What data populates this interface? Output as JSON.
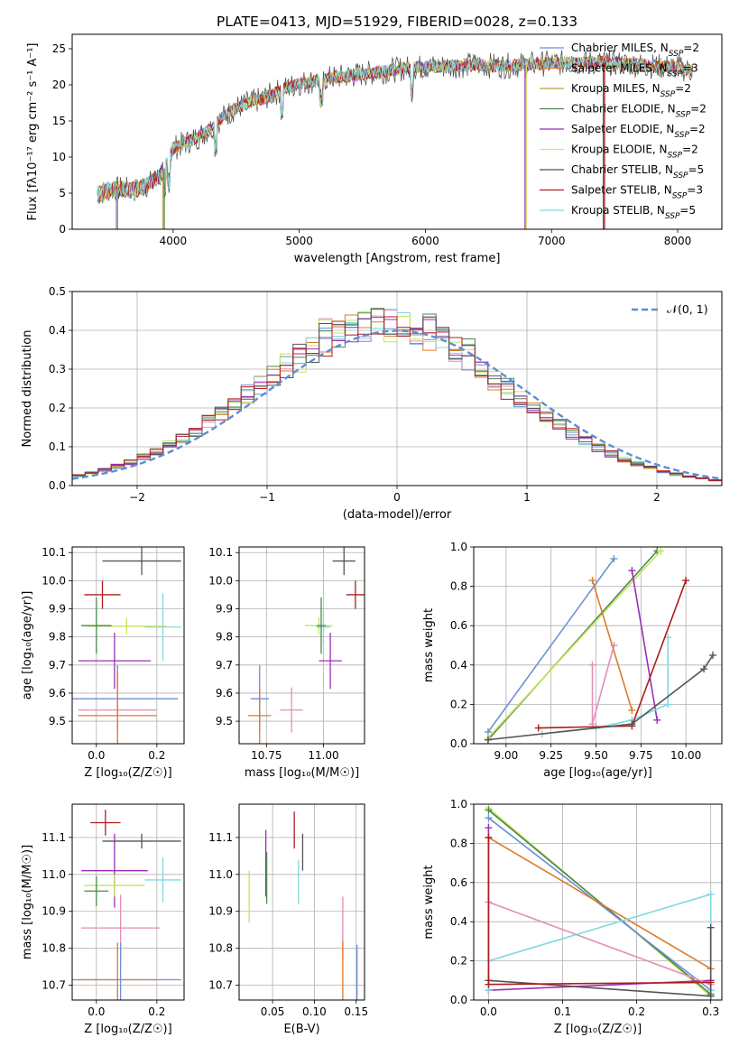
{
  "figure": {
    "title": "PLATE=0413, MJD=51929, FIBERID=0028, z=0.133",
    "palette": {
      "blue": "#6c8fd6",
      "orange": "#e07a28",
      "pink": "#e38fb5",
      "cyan": "#7fd8df",
      "yellowgreen": "#c8e35a",
      "green": "#4a8a4a",
      "purple": "#9b2fb5",
      "gray": "#555555",
      "darkred": "#b01c1c",
      "normal_line": "#5b8ed6"
    }
  },
  "chart_data": [
    {
      "id": "spectrum",
      "type": "line",
      "xlabel": "wavelength [Angstrom, rest frame]",
      "ylabel": "Flux [fλ10⁻¹⁷ erg cm⁻² s⁻¹ A⁻¹]",
      "xlim": [
        3200,
        8350
      ],
      "ylim": [
        0,
        27
      ],
      "xticks": [
        4000,
        5000,
        6000,
        7000,
        8000
      ],
      "yticks": [
        0,
        5,
        10,
        15,
        20,
        25
      ],
      "grid": false,
      "legend_position": "top-right",
      "continuum": {
        "x": [
          3400,
          3500,
          3600,
          3700,
          3800,
          3900,
          3950,
          4000,
          4100,
          4200,
          4300,
          4400,
          4500,
          4600,
          4700,
          4800,
          4900,
          5000,
          5200,
          5400,
          5600,
          5800,
          6000,
          6200,
          6400,
          6600,
          6800,
          7000,
          7200,
          7400,
          7600,
          7800,
          8000,
          8100
        ],
        "y": [
          4.8,
          5.5,
          5.6,
          5.4,
          6.2,
          7.5,
          9.0,
          11.2,
          12.0,
          12.8,
          14.0,
          15.6,
          16.8,
          17.5,
          18.0,
          18.8,
          19.6,
          20.2,
          20.8,
          21.3,
          21.7,
          22.2,
          22.5,
          22.6,
          22.8,
          22.6,
          22.8,
          23.0,
          23.1,
          23.1,
          22.9,
          22.6,
          22.4,
          22.0
        ]
      },
      "drops": [
        {
          "series": "Chabrier MILES",
          "x": 3550
        },
        {
          "series": "Salpeter MILES",
          "x": 3560
        },
        {
          "series": "Kroupa MILES",
          "x": 3920
        },
        {
          "series": "Chabrier ELODIE",
          "x": 3930
        },
        {
          "series": "Salpeter ELODIE",
          "x": 6790
        },
        {
          "series": "Kroupa ELODIE",
          "x": 6800
        },
        {
          "series": "Chabrier STELIB",
          "x": 7410
        },
        {
          "series": "Salpeter STELIB",
          "x": 7420
        }
      ],
      "series": [
        {
          "name": "Chabrier MILES, N_SSP=2",
          "label": "Chabrier MILES, N",
          "sub": "SSP",
          "count": "=2",
          "color": "#6c8fd6"
        },
        {
          "name": "Salpeter MILES, N_SSP=3",
          "label": "Salpeter MILES, N",
          "sub": "SSP",
          "count": "=3",
          "color": "#e07a28"
        },
        {
          "name": "Kroupa MILES, N_SSP=2",
          "label": "Kroupa MILES, N",
          "sub": "SSP",
          "count": "=2",
          "color": "#b8a248"
        },
        {
          "name": "Chabrier ELODIE, N_SSP=2",
          "label": "Chabrier ELODIE, N",
          "sub": "SSP",
          "count": "=2",
          "color": "#4a8a4a"
        },
        {
          "name": "Salpeter ELODIE, N_SSP=2",
          "label": "Salpeter ELODIE, N",
          "sub": "SSP",
          "count": "=2",
          "color": "#9b2fb5"
        },
        {
          "name": "Kroupa ELODIE, N_SSP=2",
          "label": "Kroupa ELODIE, N",
          "sub": "SSP",
          "count": "=2",
          "color": "#d8e36a"
        },
        {
          "name": "Chabrier STELIB, N_SSP=5",
          "label": "Chabrier STELIB, N",
          "sub": "SSP",
          "count": "=5",
          "color": "#555555"
        },
        {
          "name": "Salpeter STELIB, N_SSP=3",
          "label": "Salpeter STELIB, N",
          "sub": "SSP",
          "count": "=3",
          "color": "#b01c1c"
        },
        {
          "name": "Kroupa STELIB, N_SSP=5",
          "label": "Kroupa STELIB, N",
          "sub": "SSP",
          "count": "=5",
          "color": "#7fd8df"
        }
      ]
    },
    {
      "id": "residuals",
      "type": "histogram",
      "xlabel": "(data-model)/error",
      "ylabel": "Normed distribution",
      "xlim": [
        -2.5,
        2.5
      ],
      "ylim": [
        0,
        0.5
      ],
      "xticks": [
        -2,
        -1,
        0,
        1,
        2
      ],
      "yticks": [
        0.0,
        0.1,
        0.2,
        0.3,
        0.4,
        0.5
      ],
      "grid": true,
      "legend_position": "top-right",
      "normal_label": "𝒩(0, 1)",
      "bin_width": 0.1,
      "histogram_colors": [
        "#6c8fd6",
        "#e07a28",
        "#e38fb5",
        "#7fd8df",
        "#c8e35a",
        "#4a8a4a",
        "#9b2fb5",
        "#555555",
        "#b01c1c"
      ]
    },
    {
      "id": "age-vs-Z",
      "type": "errorbar",
      "xlabel": "Z [log₁₀(Z/Z☉)]",
      "ylabel": "age  [log₁₀(age/yr)]",
      "xlim": [
        -0.08,
        0.29
      ],
      "ylim": [
        9.42,
        10.12
      ],
      "xticks": [
        0.0,
        0.2
      ],
      "yticks": [
        9.5,
        9.6,
        9.7,
        9.8,
        9.9,
        10.0,
        10.1
      ],
      "grid": true,
      "points": [
        {
          "x": 0.15,
          "y": 10.07,
          "xerr": 0.13,
          "yerr": 0.05,
          "color": "#555555"
        },
        {
          "x": 0.02,
          "y": 9.95,
          "xerr": 0.06,
          "yerr": 0.05,
          "color": "#b01c1c"
        },
        {
          "x": 0.22,
          "y": 9.835,
          "xerr": 0.06,
          "yerr": 0.12,
          "color": "#7fd8df"
        },
        {
          "x": 0.1,
          "y": 9.838,
          "xerr": 0.13,
          "yerr": 0.03,
          "color": "#c8e35a"
        },
        {
          "x": 0.0,
          "y": 9.84,
          "xerr": 0.05,
          "yerr": 0.1,
          "color": "#4a8a4a"
        },
        {
          "x": 0.06,
          "y": 9.715,
          "xerr": 0.12,
          "yerr": 0.1,
          "color": "#9b2fb5"
        },
        {
          "x": 0.07,
          "y": 9.58,
          "xerr": 0.2,
          "yerr": 0.12,
          "color": "#6c8fd6"
        },
        {
          "x": 0.07,
          "y": 9.54,
          "xerr": 0.13,
          "yerr": 0.08,
          "color": "#e38fb5"
        },
        {
          "x": 0.07,
          "y": 9.52,
          "xerr": 0.13,
          "yerr": 0.15,
          "color": "#e07a28"
        }
      ]
    },
    {
      "id": "age-vs-mass",
      "type": "errorbar",
      "xlabel": "mass [log₁₀(M/M☉)]",
      "ylabel": "",
      "xlim": [
        10.63,
        11.18
      ],
      "ylim": [
        9.42,
        10.12
      ],
      "xticks": [
        10.75,
        11.0
      ],
      "yticks": [
        9.5,
        9.6,
        9.7,
        9.8,
        9.9,
        10.0,
        10.1
      ],
      "grid": true,
      "points": [
        {
          "x": 11.09,
          "y": 10.07,
          "xerr": 0.05,
          "yerr": 0.05,
          "color": "#555555"
        },
        {
          "x": 11.14,
          "y": 9.95,
          "xerr": 0.04,
          "yerr": 0.05,
          "color": "#b01c1c"
        },
        {
          "x": 10.98,
          "y": 9.84,
          "xerr": 0.06,
          "yerr": 0.03,
          "color": "#c8e35a"
        },
        {
          "x": 11.0,
          "y": 9.835,
          "xerr": 0.03,
          "yerr": 0.06,
          "color": "#7fd8df"
        },
        {
          "x": 10.99,
          "y": 9.84,
          "xerr": 0.02,
          "yerr": 0.1,
          "color": "#4a8a4a"
        },
        {
          "x": 11.03,
          "y": 9.715,
          "xerr": 0.05,
          "yerr": 0.1,
          "color": "#9b2fb5"
        },
        {
          "x": 10.72,
          "y": 9.58,
          "xerr": 0.04,
          "yerr": 0.12,
          "color": "#6c8fd6"
        },
        {
          "x": 10.86,
          "y": 9.54,
          "xerr": 0.05,
          "yerr": 0.08,
          "color": "#e38fb5"
        },
        {
          "x": 10.72,
          "y": 9.52,
          "xerr": 0.05,
          "yerr": 0.1,
          "color": "#e07a28"
        }
      ]
    },
    {
      "id": "weight-vs-age",
      "type": "line",
      "xlabel": "age  [log₁₀(age/yr)]",
      "ylabel": "mass weight",
      "xlim": [
        8.82,
        10.2
      ],
      "ylim": [
        0,
        1
      ],
      "xticks": [
        9.0,
        9.25,
        9.5,
        9.75,
        10.0
      ],
      "yticks": [
        0.0,
        0.2,
        0.4,
        0.6,
        0.8,
        1.0
      ],
      "grid": true,
      "series": [
        {
          "color": "#6c8fd6",
          "x": [
            8.9,
            9.6
          ],
          "y": [
            0.06,
            0.94
          ]
        },
        {
          "color": "#4a8a4a",
          "x": [
            8.9,
            9.84
          ],
          "y": [
            0.02,
            0.98
          ]
        },
        {
          "color": "#c8e35a",
          "x": [
            8.9,
            9.86
          ],
          "y": [
            0.03,
            0.98
          ]
        },
        {
          "color": "#e07a28",
          "x": [
            9.48,
            9.7
          ],
          "y": [
            0.83,
            0.17
          ]
        },
        {
          "color": "#9b2fb5",
          "x": [
            9.7,
            9.84
          ],
          "y": [
            0.88,
            0.12
          ]
        },
        {
          "color": "#e38fb5",
          "x": [
            9.48,
            9.48,
            9.6
          ],
          "y": [
            0.4,
            0.1,
            0.5
          ]
        },
        {
          "color": "#7fd8df",
          "x": [
            9.2,
            9.5,
            9.7,
            9.9,
            9.9
          ],
          "y": [
            0.05,
            0.08,
            0.12,
            0.2,
            0.54
          ]
        },
        {
          "color": "#b01c1c",
          "x": [
            9.18,
            9.7,
            10.0
          ],
          "y": [
            0.08,
            0.09,
            0.83
          ]
        },
        {
          "color": "#555555",
          "x": [
            8.9,
            9.7,
            10.1,
            10.15
          ],
          "y": [
            0.02,
            0.1,
            0.38,
            0.45
          ]
        }
      ]
    },
    {
      "id": "mass-vs-Z",
      "type": "errorbar",
      "xlabel": "Z [log₁₀(Z/Z☉)]",
      "ylabel": "mass [log₁₀(M/M☉)]",
      "xlim": [
        -0.08,
        0.29
      ],
      "ylim": [
        10.66,
        11.19
      ],
      "xticks": [
        0.0,
        0.2
      ],
      "yticks": [
        10.7,
        10.8,
        10.9,
        11.0,
        11.1
      ],
      "grid": true,
      "points": [
        {
          "x": 0.03,
          "y": 11.14,
          "xerr": 0.05,
          "yerr": 0.035,
          "color": "#b01c1c"
        },
        {
          "x": 0.15,
          "y": 11.09,
          "xerr": 0.13,
          "yerr": 0.02,
          "color": "#555555"
        },
        {
          "x": 0.06,
          "y": 11.01,
          "xerr": 0.11,
          "yerr": 0.1,
          "color": "#9b2fb5"
        },
        {
          "x": 0.22,
          "y": 10.985,
          "xerr": 0.06,
          "yerr": 0.06,
          "color": "#7fd8df"
        },
        {
          "x": 0.06,
          "y": 10.97,
          "xerr": 0.1,
          "yerr": 0.03,
          "color": "#c8e35a"
        },
        {
          "x": 0.0,
          "y": 10.955,
          "xerr": 0.04,
          "yerr": 0.04,
          "color": "#4a8a4a"
        },
        {
          "x": 0.08,
          "y": 10.855,
          "xerr": 0.13,
          "yerr": 0.09,
          "color": "#e38fb5"
        },
        {
          "x": 0.08,
          "y": 10.715,
          "xerr": 0.2,
          "yerr": 0.1,
          "color": "#6c8fd6"
        },
        {
          "x": 0.07,
          "y": 10.715,
          "xerr": 0.13,
          "yerr": 0.1,
          "color": "#e07a28"
        }
      ]
    },
    {
      "id": "mass-vs-ebv",
      "type": "errorbar",
      "xlabel": "E(B-V)",
      "ylabel": "",
      "xlim": [
        0.01,
        0.16
      ],
      "ylim": [
        10.66,
        11.19
      ],
      "xticks": [
        0.05,
        0.1,
        0.15
      ],
      "yticks": [
        10.7,
        10.8,
        10.9,
        11.0,
        11.1
      ],
      "grid": true,
      "points": [
        {
          "x": 0.076,
          "y": 11.12,
          "xerr": 0,
          "yerr": 0.05,
          "color": "#b01c1c"
        },
        {
          "x": 0.086,
          "y": 11.06,
          "xerr": 0,
          "yerr": 0.05,
          "color": "#555555"
        },
        {
          "x": 0.042,
          "y": 11.03,
          "xerr": 0,
          "yerr": 0.09,
          "color": "#9b2fb5"
        },
        {
          "x": 0.043,
          "y": 10.99,
          "xerr": 0,
          "yerr": 0.07,
          "color": "#4a8a4a"
        },
        {
          "x": 0.081,
          "y": 10.98,
          "xerr": 0,
          "yerr": 0.06,
          "color": "#7fd8df"
        },
        {
          "x": 0.022,
          "y": 10.94,
          "xerr": 0,
          "yerr": 0.07,
          "color": "#c8e35a"
        },
        {
          "x": 0.134,
          "y": 10.855,
          "xerr": 0,
          "yerr": 0.085,
          "color": "#e38fb5"
        },
        {
          "x": 0.134,
          "y": 10.72,
          "xerr": 0,
          "yerr": 0.1,
          "color": "#e07a28"
        },
        {
          "x": 0.151,
          "y": 10.72,
          "xerr": 0,
          "yerr": 0.09,
          "color": "#6c8fd6"
        }
      ]
    },
    {
      "id": "weight-vs-Z",
      "type": "line",
      "xlabel": "Z [log₁₀(Z/Z☉)]",
      "ylabel": "mass weight",
      "xlim": [
        -0.02,
        0.315
      ],
      "ylim": [
        0,
        1
      ],
      "xticks": [
        0.0,
        0.1,
        0.2,
        0.3
      ],
      "yticks": [
        0.0,
        0.2,
        0.4,
        0.6,
        0.8,
        1.0
      ],
      "grid": true,
      "series": [
        {
          "color": "#c8e35a",
          "x": [
            0.0,
            0.3
          ],
          "y": [
            0.98,
            0.02
          ]
        },
        {
          "color": "#4a8a4a",
          "x": [
            0.0,
            0.3
          ],
          "y": [
            0.97,
            0.03
          ]
        },
        {
          "color": "#6c8fd6",
          "x": [
            0.0,
            0.3
          ],
          "y": [
            0.93,
            0.05
          ]
        },
        {
          "color": "#9b2fb5",
          "x": [
            0.0,
            0.0,
            0.3
          ],
          "y": [
            0.88,
            0.05,
            0.1
          ]
        },
        {
          "color": "#e07a28",
          "x": [
            0.0,
            0.3
          ],
          "y": [
            0.83,
            0.16
          ]
        },
        {
          "color": "#e38fb5",
          "x": [
            0.0,
            0.3
          ],
          "y": [
            0.5,
            0.08
          ]
        },
        {
          "color": "#7fd8df",
          "x": [
            0.0,
            0.0,
            0.3,
            0.3
          ],
          "y": [
            0.05,
            0.2,
            0.54,
            0.05
          ]
        },
        {
          "color": "#555555",
          "x": [
            0.0,
            0.3,
            0.3
          ],
          "y": [
            0.1,
            0.02,
            0.37
          ]
        },
        {
          "color": "#b01c1c",
          "x": [
            0.0,
            0.0,
            0.3
          ],
          "y": [
            0.83,
            0.08,
            0.09
          ]
        }
      ]
    }
  ]
}
